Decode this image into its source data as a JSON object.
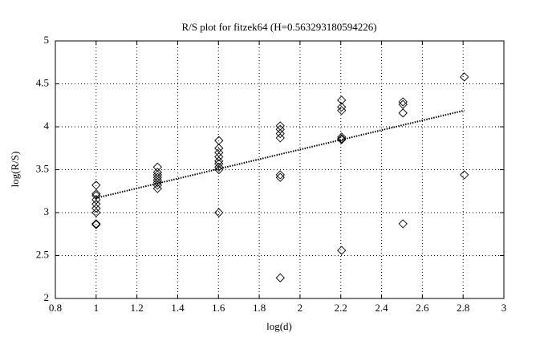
{
  "chart_data": {
    "type": "scatter",
    "title": "R/S plot for fitzek64 (H=0.563293180594226)",
    "x_label": "log(d)",
    "y_label": "log(R/S)",
    "xlim": [
      0.8,
      3
    ],
    "xticks": [
      0.8,
      1,
      1.2,
      1.4,
      1.6,
      1.8,
      2,
      2.2,
      2.4,
      2.6,
      2.8,
      3
    ],
    "ylim": [
      2,
      5
    ],
    "yticks": [
      2,
      2.5,
      3,
      3.5,
      4,
      4.5,
      5
    ],
    "grid": true,
    "series": [
      {
        "marker": "diamond",
        "color": "#000000",
        "x": [
          1,
          1,
          1,
          1,
          1,
          1,
          1,
          1,
          1,
          1.301,
          1.301,
          1.301,
          1.301,
          1.301,
          1.301,
          1.301,
          1.301,
          1.602,
          1.602,
          1.602,
          1.602,
          1.602,
          1.602,
          1.602,
          1.602,
          1.602,
          1.903,
          1.903,
          1.903,
          1.903,
          1.903,
          1.903,
          1.903,
          2.204,
          2.204,
          2.204,
          2.204,
          2.204,
          2.204,
          2.204,
          2.505,
          2.505,
          2.505,
          2.505,
          2.806,
          2.806
        ],
        "values": [
          3.32,
          3.22,
          3.2,
          3.15,
          3.1,
          3.05,
          3.0,
          2.87,
          2.86,
          3.53,
          3.47,
          3.44,
          3.41,
          3.38,
          3.35,
          3.32,
          3.28,
          3.84,
          3.75,
          3.7,
          3.65,
          3.6,
          3.57,
          3.53,
          3.5,
          3.0,
          4.01,
          3.97,
          3.92,
          3.87,
          3.44,
          3.41,
          2.24,
          4.31,
          4.23,
          4.19,
          3.88,
          3.86,
          3.85,
          2.56,
          4.29,
          4.26,
          4.16,
          2.87,
          4.58,
          3.44
        ]
      },
      {
        "line": "dotted",
        "color": "#000000",
        "x": [
          1,
          2.806
        ],
        "values": [
          3.17,
          4.19
        ]
      }
    ]
  }
}
